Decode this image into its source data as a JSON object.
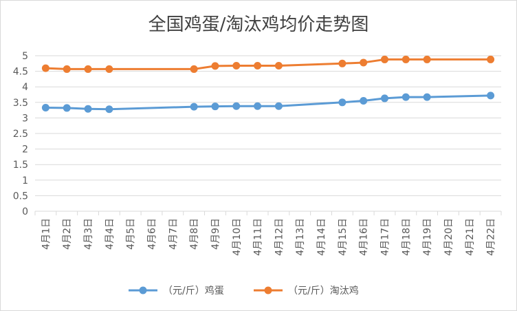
{
  "chart_data": {
    "type": "line",
    "title": "全国鸡蛋/淘汰鸡均价走势图",
    "categories": [
      "4月1日",
      "4月2日",
      "4月3日",
      "4月4日",
      "4月5日",
      "4月6日",
      "4月7日",
      "4月8日",
      "4月9日",
      "4月10日",
      "4月11日",
      "4月12日",
      "4月13日",
      "4月14日",
      "4月15日",
      "4月16日",
      "4月17日",
      "4月18日",
      "4月19日",
      "4月20日",
      "4月21日",
      "4月22日"
    ],
    "ylim": [
      0,
      5
    ],
    "yticks": [
      "0",
      "0.5",
      "1",
      "1.5",
      "2",
      "2.5",
      "3",
      "3.5",
      "4",
      "4.5",
      "5"
    ],
    "grid": true,
    "legend_position": "bottom",
    "series": [
      {
        "name": "（元/斤）鸡蛋",
        "color": "#5B9BD5",
        "values": [
          3.33,
          3.32,
          3.29,
          3.28,
          null,
          null,
          null,
          3.36,
          3.37,
          3.38,
          3.38,
          3.38,
          null,
          null,
          3.5,
          3.55,
          3.63,
          3.67,
          3.67,
          null,
          null,
          3.72
        ]
      },
      {
        "name": "（元/斤）淘汰鸡",
        "color": "#ED7D31",
        "values": [
          4.6,
          4.57,
          4.57,
          4.57,
          null,
          null,
          null,
          4.57,
          4.67,
          4.68,
          4.68,
          4.68,
          null,
          null,
          4.75,
          4.78,
          4.88,
          4.88,
          4.88,
          null,
          null,
          4.88
        ]
      }
    ]
  }
}
